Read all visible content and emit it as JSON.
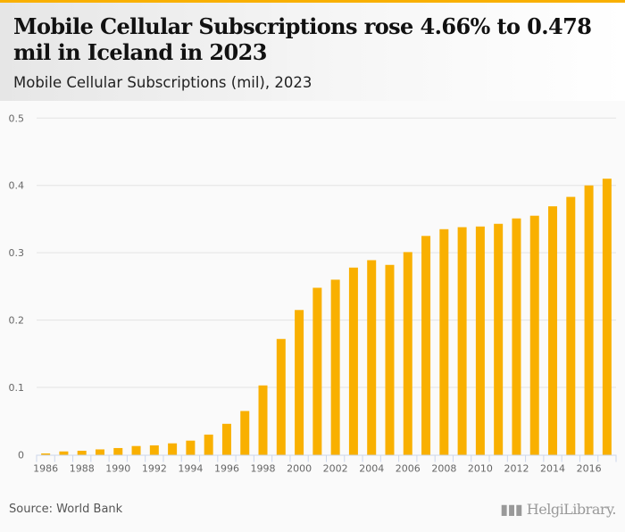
{
  "header": {
    "title": "Mobile Cellular Subscriptions rose 4.66% to 0.478 mil in Iceland in 2023",
    "subtitle": "Mobile Cellular Subscriptions (mil), 2023"
  },
  "footer": {
    "source": "Source: World Bank",
    "logo_text": "HelgiLibrary."
  },
  "colors": {
    "bar": "#f9b000",
    "grid": "#e3e3e3",
    "axis": "#ccd6eb"
  },
  "chart_data": {
    "type": "bar",
    "title": "Mobile Cellular Subscriptions (mil), 2023",
    "xlabel": "",
    "ylabel": "",
    "ylim": [
      0,
      0.5
    ],
    "yticks": [
      "0",
      "0.1",
      "0.2",
      "0.3",
      "0.4",
      "0.5"
    ],
    "xticks": [
      "1986",
      "1988",
      "1990",
      "1992",
      "1994",
      "1996",
      "1998",
      "2000",
      "2002",
      "2004",
      "2006",
      "2008",
      "2010",
      "2012",
      "2014",
      "2016"
    ],
    "grid": true,
    "categories": [
      "1986",
      "1987",
      "1988",
      "1989",
      "1990",
      "1991",
      "1992",
      "1993",
      "1994",
      "1995",
      "1996",
      "1997",
      "1998",
      "1999",
      "2000",
      "2001",
      "2002",
      "2003",
      "2004",
      "2005",
      "2006",
      "2007",
      "2008",
      "2009",
      "2010",
      "2011",
      "2012",
      "2013",
      "2014",
      "2015",
      "2016",
      "2017"
    ],
    "values": [
      0.002,
      0.005,
      0.006,
      0.008,
      0.01,
      0.013,
      0.014,
      0.017,
      0.021,
      0.03,
      0.046,
      0.065,
      0.103,
      0.172,
      0.215,
      0.248,
      0.26,
      0.278,
      0.289,
      0.282,
      0.301,
      0.325,
      0.335,
      0.338,
      0.339,
      0.343,
      0.351,
      0.355,
      0.369,
      0.383,
      0.4,
      0.41
    ]
  }
}
